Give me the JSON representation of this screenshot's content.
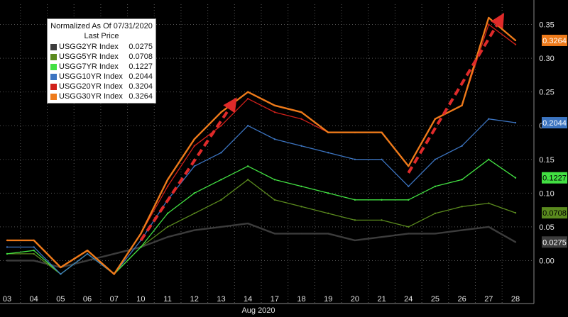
{
  "legend": {
    "title": "Normalized As Of 07/31/2020",
    "subtitle": "Last Price",
    "items": [
      {
        "name": "USGG2YR Index",
        "value": "0.0275",
        "color": "#3c3c3c"
      },
      {
        "name": "USGG5YR Index",
        "value": "0.0708",
        "color": "#5a8a1e"
      },
      {
        "name": "USGG7YR Index",
        "value": "0.1227",
        "color": "#42e042"
      },
      {
        "name": "USGG10YR Index",
        "value": "0.2044",
        "color": "#3c74c0"
      },
      {
        "name": "USGG20YR Index",
        "value": "0.3204",
        "color": "#d0201a"
      },
      {
        "name": "USGG30YR Index",
        "value": "0.3264",
        "color": "#ee7a1a"
      }
    ]
  },
  "chart_data": {
    "type": "line",
    "xlabel": "Aug 2020",
    "x": [
      "03",
      "04",
      "05",
      "06",
      "07",
      "10",
      "11",
      "12",
      "13",
      "14",
      "17",
      "18",
      "19",
      "20",
      "21",
      "24",
      "25",
      "26",
      "27",
      "28"
    ],
    "y_ticks": [
      "0.00",
      "0.05",
      "0.10",
      "0.15",
      "0.20",
      "0.25",
      "0.30",
      "0.35"
    ],
    "ylim": [
      -0.05,
      0.38
    ],
    "axis_side": "right",
    "grid": true,
    "legend_position": "top-left",
    "series": [
      {
        "name": "USGG2YR Index",
        "color": "#3c3c3c",
        "last": 0.0275,
        "values": [
          0.0,
          0.0,
          -0.01,
          0.0,
          0.01,
          0.02,
          0.035,
          0.045,
          0.05,
          0.055,
          0.04,
          0.04,
          0.04,
          0.03,
          0.035,
          0.04,
          0.04,
          0.045,
          0.05,
          0.0275
        ]
      },
      {
        "name": "USGG5YR Index",
        "color": "#5a8a1e",
        "last": 0.0708,
        "values": [
          0.01,
          0.01,
          -0.02,
          0.01,
          -0.02,
          0.02,
          0.05,
          0.07,
          0.09,
          0.12,
          0.09,
          0.08,
          0.07,
          0.06,
          0.06,
          0.05,
          0.07,
          0.08,
          0.085,
          0.0708
        ]
      },
      {
        "name": "USGG7YR Index",
        "color": "#42e042",
        "last": 0.1227,
        "values": [
          0.01,
          0.015,
          -0.02,
          0.01,
          -0.02,
          0.02,
          0.07,
          0.1,
          0.12,
          0.14,
          0.12,
          0.11,
          0.1,
          0.09,
          0.09,
          0.09,
          0.11,
          0.12,
          0.15,
          0.1227
        ]
      },
      {
        "name": "USGG10YR Index",
        "color": "#3c74c0",
        "last": 0.2044,
        "values": [
          0.02,
          0.02,
          -0.02,
          0.01,
          -0.02,
          0.03,
          0.09,
          0.14,
          0.16,
          0.2,
          0.18,
          0.17,
          0.16,
          0.15,
          0.15,
          0.11,
          0.15,
          0.17,
          0.21,
          0.2044
        ]
      },
      {
        "name": "USGG20YR Index",
        "color": "#d0201a",
        "last": 0.3204,
        "values": [
          0.03,
          0.03,
          -0.01,
          0.015,
          -0.02,
          0.04,
          0.11,
          0.17,
          0.2,
          0.24,
          0.22,
          0.21,
          0.19,
          0.19,
          0.19,
          0.14,
          0.21,
          0.23,
          0.35,
          0.3204
        ]
      },
      {
        "name": "USGG30YR Index",
        "color": "#ee7a1a",
        "last": 0.3264,
        "values": [
          0.03,
          0.03,
          -0.01,
          0.015,
          -0.02,
          0.04,
          0.12,
          0.18,
          0.22,
          0.25,
          0.23,
          0.22,
          0.19,
          0.19,
          0.19,
          0.14,
          0.21,
          0.23,
          0.36,
          0.3264
        ]
      }
    ],
    "annotations": [
      {
        "type": "arrow",
        "color": "#e02a2a",
        "from": {
          "x": "10",
          "y": 0.03
        },
        "to": {
          "x": "14",
          "y": 0.235
        }
      },
      {
        "type": "arrow",
        "color": "#e02a2a",
        "from": {
          "x": "24",
          "y": 0.13
        },
        "to": {
          "x": "28",
          "y": 0.36
        }
      }
    ]
  }
}
